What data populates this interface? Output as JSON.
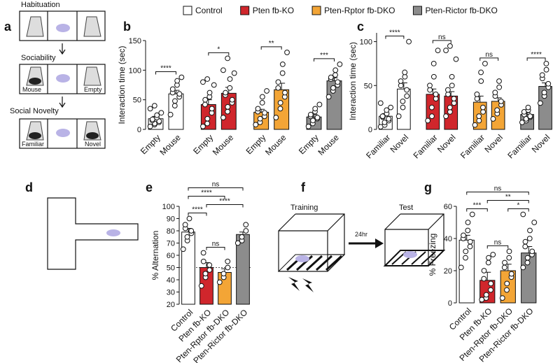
{
  "panels": [
    "a",
    "b",
    "c",
    "d",
    "e",
    "f",
    "g"
  ],
  "diagrams": {
    "a": {
      "stages": [
        "Habituation",
        "Sociability",
        "Social Novelty"
      ],
      "chamber_labels": [
        "Mouse",
        "Empty",
        "Familiar",
        "Novel"
      ]
    },
    "f": {
      "labels": [
        "Training",
        "24hr",
        "Test"
      ]
    }
  },
  "legend": [
    {
      "name": "Control",
      "color": "#ffffff"
    },
    {
      "name": "Pten fb-KO",
      "color": "#d0262c"
    },
    {
      "name": "Pten-Rptor fb-DKO",
      "color": "#f3a536"
    },
    {
      "name": "Pten-Rictor fb-DKO",
      "color": "#8c8c8c"
    }
  ],
  "chart_data": [
    {
      "type": "bar",
      "ylabel": "Interaction time (sec)",
      "categories": [
        "Empty",
        "Mouse",
        "Empty",
        "Mouse",
        "Empty",
        "Mouse",
        "Empty",
        "Mouse"
      ],
      "values": [
        18,
        60,
        42,
        61,
        29,
        67,
        21,
        82
      ],
      "errors": [
        4,
        6,
        8,
        10,
        5,
        11,
        4,
        5
      ],
      "colors": [
        "#ffffff",
        "#ffffff",
        "#d0262c",
        "#d0262c",
        "#f3a536",
        "#f3a536",
        "#8c8c8c",
        "#8c8c8c"
      ],
      "points": [
        [
          5,
          8,
          10,
          12,
          14,
          15,
          17,
          20,
          24,
          28,
          35,
          40
        ],
        [
          25,
          40,
          48,
          55,
          60,
          62,
          68,
          75,
          82,
          88
        ],
        [
          5,
          10,
          18,
          28,
          35,
          42,
          50,
          55,
          62,
          75,
          80,
          85
        ],
        [
          20,
          30,
          38,
          45,
          50,
          58,
          62,
          70,
          85,
          95,
          100,
          120
        ],
        [
          8,
          12,
          18,
          22,
          28,
          30,
          35,
          45,
          55,
          65
        ],
        [
          20,
          35,
          45,
          55,
          62,
          70,
          80,
          95,
          110,
          130
        ],
        [
          5,
          10,
          15,
          18,
          20,
          22,
          25,
          30,
          35,
          42
        ],
        [
          55,
          65,
          70,
          75,
          80,
          85,
          88,
          92,
          100,
          110
        ]
      ],
      "pair_labels": [
        "****",
        "*",
        "**",
        "***"
      ],
      "ylim": [
        0,
        150
      ],
      "yticks": [
        0,
        50,
        100,
        150
      ]
    },
    {
      "type": "bar",
      "ylabel": "Interaction time (sec)",
      "categories": [
        "Familiar",
        "Novel",
        "Familiar",
        "Novel",
        "Familiar",
        "Novel",
        "Familiar",
        "Novel"
      ],
      "values": [
        15,
        46,
        40,
        38,
        31,
        32,
        17,
        49
      ],
      "errors": [
        3,
        7,
        6,
        5,
        7,
        4,
        2,
        4
      ],
      "colors": [
        "#ffffff",
        "#ffffff",
        "#d0262c",
        "#d0262c",
        "#f3a536",
        "#f3a536",
        "#8c8c8c",
        "#8c8c8c"
      ],
      "points": [
        [
          3,
          5,
          8,
          10,
          12,
          14,
          15,
          18,
          22,
          25,
          30
        ],
        [
          15,
          25,
          32,
          38,
          45,
          50,
          55,
          60,
          65,
          100
        ],
        [
          10,
          15,
          25,
          35,
          40,
          45,
          50,
          60,
          75,
          90
        ],
        [
          15,
          20,
          25,
          30,
          35,
          40,
          45,
          50,
          60,
          80,
          90,
          95
        ],
        [
          5,
          10,
          15,
          20,
          25,
          35,
          40,
          55,
          65,
          75
        ],
        [
          12,
          18,
          22,
          28,
          32,
          38,
          42,
          48,
          55
        ],
        [
          8,
          10,
          12,
          14,
          15,
          17,
          20,
          22,
          25
        ],
        [
          30,
          38,
          42,
          48,
          52,
          58,
          62,
          68,
          75
        ]
      ],
      "pair_labels": [
        "****",
        "ns",
        "ns",
        "****"
      ],
      "ylim": [
        0,
        110
      ],
      "yticks": [
        0,
        50,
        100
      ]
    },
    {
      "type": "bar",
      "ylabel": "% Alternation",
      "categories": [
        "Control",
        "Pten fb-KO",
        "Pten-Rptor fb-DKO",
        "Pten-Rictor fb-DKO"
      ],
      "values": [
        79,
        50,
        46,
        77
      ],
      "errors": [
        3,
        4,
        3,
        2
      ],
      "colors": [
        "#ffffff",
        "#d0262c",
        "#f3a536",
        "#8c8c8c"
      ],
      "points": [
        [
          65,
          72,
          75,
          78,
          80,
          82,
          85,
          90
        ],
        [
          35,
          42,
          45,
          48,
          52,
          55,
          62
        ],
        [
          38,
          42,
          45,
          50,
          55
        ],
        [
          70,
          72,
          75,
          80,
          85
        ]
      ],
      "reference_line": 50,
      "comparisons": [
        {
          "label": "ns",
          "between": [
            "Pten fb-KO",
            "Pten-Rptor fb-DKO"
          ]
        },
        {
          "label": "****",
          "between": [
            "Control",
            "Pten fb-KO"
          ]
        },
        {
          "label": "****",
          "between": [
            "Pten fb-KO",
            "Pten-Rictor fb-DKO"
          ]
        },
        {
          "label": "****",
          "between": [
            "Control",
            "Pten-Rptor fb-DKO"
          ]
        },
        {
          "label": "ns",
          "between": [
            "Control",
            "Pten-Rictor fb-DKO"
          ]
        }
      ],
      "ylim": [
        20,
        100
      ],
      "yticks": [
        20,
        30,
        40,
        50,
        60,
        70,
        80,
        90,
        100
      ]
    },
    {
      "type": "bar",
      "ylabel": "% Freezing",
      "categories": [
        "Control",
        "Pten fb-KO",
        "Pten-Rptor fb-DKO",
        "Pten-Rictor fb-DKO"
      ],
      "values": [
        39,
        14,
        20,
        31
      ],
      "errors": [
        3,
        5,
        4,
        4
      ],
      "colors": [
        "#ffffff",
        "#d0262c",
        "#f3a536",
        "#8c8c8c"
      ],
      "points": [
        [
          22,
          28,
          32,
          35,
          38,
          40,
          42,
          45,
          50,
          55
        ],
        [
          2,
          3,
          5,
          8,
          12,
          15,
          20,
          25,
          28,
          30
        ],
        [
          3,
          8,
          12,
          16,
          18,
          22,
          25,
          28,
          32
        ],
        [
          22,
          25,
          28,
          30,
          32,
          35,
          38,
          40,
          45,
          50,
          55
        ]
      ],
      "comparisons": [
        {
          "label": "ns",
          "between": [
            "Pten fb-KO",
            "Pten-Rptor fb-DKO"
          ]
        },
        {
          "label": "*",
          "between": [
            "Pten-Rptor fb-DKO",
            "Pten-Rictor fb-DKO"
          ]
        },
        {
          "label": "***",
          "between": [
            "Control",
            "Pten fb-KO"
          ]
        },
        {
          "label": "**",
          "between": [
            "Pten fb-KO",
            "Pten-Rictor fb-DKO"
          ]
        },
        {
          "label": "ns",
          "between": [
            "Control",
            "Pten-Rictor fb-DKO"
          ]
        }
      ],
      "ylim": [
        0,
        60
      ],
      "yticks": [
        0,
        20,
        40,
        60
      ]
    }
  ]
}
